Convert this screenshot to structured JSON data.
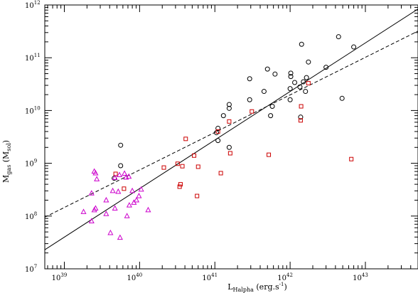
{
  "chart_data": {
    "type": "scatter",
    "title": "",
    "xlabel": {
      "main": "L",
      "sub": "Halpha",
      "unit": " (erg.s",
      "unit_sup": "-1",
      "close": ")"
    },
    "ylabel": {
      "main": "M",
      "sub": "gas",
      "unit": " (M",
      "unit_sub": "sol",
      "close": ")"
    },
    "x_scale": "log",
    "y_scale": "log",
    "xlim": [
      5.5e+38,
      5e+43
    ],
    "ylim": [
      10000000.0,
      1000000000000.0
    ],
    "x_ticks": [
      {
        "base": "10",
        "exp": "39",
        "value": 1e+39
      },
      {
        "base": "10",
        "exp": "40",
        "value": 1e+40
      },
      {
        "base": "10",
        "exp": "41",
        "value": 1e+41
      },
      {
        "base": "10",
        "exp": "42",
        "value": 1e+42
      },
      {
        "base": "10",
        "exp": "43",
        "value": 1e+43
      }
    ],
    "y_ticks": [
      {
        "base": "10",
        "exp": "7",
        "value": 10000000.0
      },
      {
        "base": "10",
        "exp": "8",
        "value": 100000000.0
      },
      {
        "base": "10",
        "exp": "9",
        "value": 1000000000.0
      },
      {
        "base": "10",
        "exp": "10",
        "value": 10000000000.0
      },
      {
        "base": "10",
        "exp": "11",
        "value": 100000000000.0
      },
      {
        "base": "10",
        "exp": "12",
        "value": 1000000000000.0
      }
    ],
    "grid": false,
    "series": [
      {
        "marker": "circle",
        "color": "#000000",
        "points": [
          [
            4.6e+39,
            520000000.0
          ],
          [
            5.6e+39,
            900000000.0
          ],
          [
            5.6e+39,
            2200000000.0
          ],
          [
            1.05e+41,
            3800000000.0
          ],
          [
            1.1e+41,
            2700000000.0
          ],
          [
            1.1e+41,
            4600000000.0
          ],
          [
            1.3e+41,
            8000000000.0
          ],
          [
            1.55e+41,
            11000000000.0
          ],
          [
            1.55e+41,
            13000000000.0
          ],
          [
            1.55e+41,
            2000000000.0
          ],
          [
            2.9e+41,
            16000000000.0
          ],
          [
            2.9e+41,
            40000000000.0
          ],
          [
            4.5e+41,
            23000000000.0
          ],
          [
            5e+41,
            61000000000.0
          ],
          [
            5.5e+41,
            8000000000.0
          ],
          [
            5.8e+41,
            12000000000.0
          ],
          [
            6.3e+41,
            49000000000.0
          ],
          [
            1e+42,
            16000000000.0
          ],
          [
            1e+42,
            26000000000.0
          ],
          [
            1.02e+42,
            44000000000.0
          ],
          [
            1.02e+42,
            51000000000.0
          ],
          [
            1.15e+42,
            34000000000.0
          ],
          [
            1.35e+42,
            28000000000.0
          ],
          [
            1.38e+42,
            7500000000.0
          ],
          [
            1.42e+42,
            180000000000.0
          ],
          [
            1.5e+42,
            35000000000.0
          ],
          [
            1.6e+42,
            23000000000.0
          ],
          [
            1.65e+42,
            42000000000.0
          ],
          [
            1.75e+42,
            83000000000.0
          ],
          [
            3e+42,
            66000000000.0
          ],
          [
            4.4e+42,
            250000000000.0
          ],
          [
            4.9e+42,
            17000000000.0
          ],
          [
            7e+42,
            160000000000.0
          ]
        ]
      },
      {
        "marker": "square",
        "color": "#cc0000",
        "points": [
          [
            4.8e+39,
            630000000.0
          ],
          [
            6.2e+39,
            330000000.0
          ],
          [
            2.1e+40,
            830000000.0
          ],
          [
            3.2e+40,
            980000000.0
          ],
          [
            3.4e+40,
            360000000.0
          ],
          [
            3.5e+40,
            400000000.0
          ],
          [
            3.7e+40,
            880000000.0
          ],
          [
            4.1e+40,
            2900000000.0
          ],
          [
            5.3e+40,
            1400000000.0
          ],
          [
            5.8e+40,
            240000000.0
          ],
          [
            6e+40,
            860000000.0
          ],
          [
            1.1e+41,
            4000000000.0
          ],
          [
            1.2e+41,
            650000000.0
          ],
          [
            1.55e+41,
            6200000000.0
          ],
          [
            1.6e+41,
            1550000000.0
          ],
          [
            3.1e+41,
            9600000000.0
          ],
          [
            5.2e+41,
            1450000000.0
          ],
          [
            1.38e+42,
            6500000000.0
          ],
          [
            1.4e+42,
            12000000000.0
          ],
          [
            1.75e+42,
            33000000000.0
          ],
          [
            6.5e+42,
            1200000000.0
          ]
        ]
      },
      {
        "marker": "triangle",
        "color": "#cc00cc",
        "points": [
          [
            1.8e+39,
            120000000.0
          ],
          [
            2.3e+39,
            270000000.0
          ],
          [
            2.3e+39,
            80000000.0
          ],
          [
            2.5e+39,
            700000000.0
          ],
          [
            2.5e+39,
            130000000.0
          ],
          [
            2.6e+39,
            650000000.0
          ],
          [
            2.6e+39,
            140000000.0
          ],
          [
            2.7e+39,
            500000000.0
          ],
          [
            3.6e+39,
            200000000.0
          ],
          [
            3.6e+39,
            110000000.0
          ],
          [
            4.1e+39,
            48000000.0
          ],
          [
            4.4e+39,
            300000000.0
          ],
          [
            4.7e+39,
            140000000.0
          ],
          [
            4.7e+39,
            530000000.0
          ],
          [
            5.2e+39,
            290000000.0
          ],
          [
            5.4e+39,
            600000000.0
          ],
          [
            5.5e+39,
            39000000.0
          ],
          [
            6.3e+39,
            640000000.0
          ],
          [
            6.6e+39,
            540000000.0
          ],
          [
            6.8e+39,
            100000000.0
          ],
          [
            7.2e+39,
            560000000.0
          ],
          [
            7.3e+39,
            160000000.0
          ],
          [
            8e+39,
            300000000.0
          ],
          [
            8.4e+39,
            180000000.0
          ],
          [
            9.1e+39,
            200000000.0
          ],
          [
            9.8e+39,
            240000000.0
          ],
          [
            1.05e+40,
            320000000.0
          ],
          [
            1.3e+40,
            130000000.0
          ]
        ]
      }
    ],
    "fit_lines": [
      {
        "style": "solid",
        "color": "#000000",
        "from": [
          5.5e+38,
          23000000.0
        ],
        "to": [
          5e+43,
          840000000000.0
        ]
      },
      {
        "style": "dashed",
        "color": "#000000",
        "from": [
          5.5e+38,
          95000000.0
        ],
        "to": [
          5e+43,
          320000000000.0
        ]
      }
    ]
  }
}
